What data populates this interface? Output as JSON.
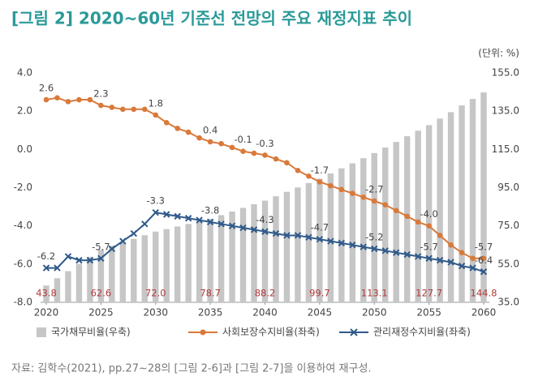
{
  "chart_data": {
    "type": "combo",
    "title": "[그림 2] 2020~60년 기준선 전망의 주요 재정지표 추이",
    "unit": "(단위: %)",
    "note": "자료: 김학수(2021), pp.27~28의 [그림 2-6]과 [그림 2-7]을 이용하여 재구성.",
    "x": [
      2020,
      2021,
      2022,
      2023,
      2024,
      2025,
      2026,
      2027,
      2028,
      2029,
      2030,
      2031,
      2032,
      2033,
      2034,
      2035,
      2036,
      2037,
      2038,
      2039,
      2040,
      2041,
      2042,
      2043,
      2044,
      2045,
      2046,
      2047,
      2048,
      2049,
      2050,
      2051,
      2052,
      2053,
      2054,
      2055,
      2056,
      2057,
      2058,
      2059,
      2060
    ],
    "xlim": [
      2020,
      2060
    ],
    "xticks": [
      2020,
      2025,
      2030,
      2035,
      2040,
      2045,
      2050,
      2055,
      2060
    ],
    "ylim": [
      -8,
      4
    ],
    "yticks": [
      {
        "value": 4,
        "label": "4.0"
      },
      {
        "value": 2,
        "label": "2.0"
      },
      {
        "value": 0,
        "label": "0.0"
      },
      {
        "value": -2,
        "label": "-2.0"
      },
      {
        "value": -4,
        "label": "-4.0"
      },
      {
        "value": -6,
        "label": "-6.0"
      },
      {
        "value": -8,
        "label": "-8.0"
      }
    ],
    "y2lim": [
      35,
      155
    ],
    "y2ticks": [
      {
        "value": 155,
        "label": "155.0"
      },
      {
        "value": 135,
        "label": "135.0"
      },
      {
        "value": 115,
        "label": "115.0"
      },
      {
        "value": 95,
        "label": "95.0"
      },
      {
        "value": 75,
        "label": "75.0"
      },
      {
        "value": 55,
        "label": "55.0"
      },
      {
        "value": 35,
        "label": "35.0"
      }
    ],
    "grid": false,
    "legend": "bottom",
    "series": [
      {
        "name": "국가채무비율(우축)",
        "type": "bar",
        "axis": "y2",
        "color": "#c6c6c6",
        "label_color": "#b23a3a",
        "values": [
          43.8,
          47.6,
          51.3,
          55.1,
          58.8,
          62.6,
          64.5,
          66.4,
          68.2,
          70.1,
          72.0,
          73.3,
          74.7,
          76.0,
          77.4,
          78.7,
          80.6,
          82.5,
          84.4,
          86.3,
          88.2,
          90.5,
          92.8,
          95.1,
          97.4,
          99.7,
          102.4,
          105.1,
          107.7,
          110.4,
          113.1,
          116.0,
          118.9,
          121.9,
          124.8,
          127.7,
          131.1,
          134.5,
          138.0,
          141.4,
          144.8
        ],
        "value_labels": [
          "43.8",
          null,
          null,
          null,
          null,
          "62.6",
          null,
          null,
          null,
          null,
          "72.0",
          null,
          null,
          null,
          null,
          "78.7",
          null,
          null,
          null,
          null,
          "88.2",
          null,
          null,
          null,
          null,
          "99.7",
          null,
          null,
          null,
          null,
          "113.1",
          null,
          null,
          null,
          null,
          "127.7",
          null,
          null,
          null,
          null,
          "144.8"
        ]
      },
      {
        "name": "사회보장수지비율(좌축)",
        "type": "line",
        "marker": "circle",
        "color": "#d9793a",
        "values": [
          2.6,
          2.7,
          2.5,
          2.6,
          2.6,
          2.3,
          2.2,
          2.1,
          2.1,
          2.1,
          1.8,
          1.4,
          1.1,
          0.9,
          0.6,
          0.4,
          0.3,
          0.1,
          -0.1,
          -0.2,
          -0.3,
          -0.5,
          -0.7,
          -1.1,
          -1.4,
          -1.7,
          -1.9,
          -2.1,
          -2.3,
          -2.5,
          -2.7,
          -2.9,
          -3.2,
          -3.5,
          -3.8,
          -4.0,
          -4.5,
          -5.0,
          -5.4,
          -5.7,
          -5.7
        ],
        "value_labels": [
          "2.6",
          null,
          null,
          null,
          null,
          "2.3",
          null,
          null,
          null,
          null,
          "1.8",
          null,
          null,
          null,
          null,
          "0.4",
          null,
          null,
          "-0.1",
          null,
          "-0.3",
          null,
          null,
          null,
          null,
          "-1.7",
          null,
          null,
          null,
          null,
          "-2.7",
          null,
          null,
          null,
          null,
          "-4.0",
          null,
          null,
          null,
          null,
          "-5.7"
        ]
      },
      {
        "name": "관리재정수지비율(좌축)",
        "type": "line",
        "marker": "x",
        "color": "#2f5a8a",
        "values": [
          -6.2,
          -6.2,
          -5.6,
          -5.8,
          -5.8,
          -5.7,
          -5.2,
          -4.8,
          -4.4,
          -3.9,
          -3.3,
          -3.4,
          -3.5,
          -3.6,
          -3.7,
          -3.8,
          -3.9,
          -4.0,
          -4.1,
          -4.2,
          -4.3,
          -4.4,
          -4.5,
          -4.5,
          -4.6,
          -4.7,
          -4.8,
          -4.9,
          -5.0,
          -5.1,
          -5.2,
          -5.3,
          -5.4,
          -5.5,
          -5.6,
          -5.7,
          -5.8,
          -5.9,
          -6.1,
          -6.2,
          -6.4
        ],
        "value_labels": [
          "-6.2",
          null,
          null,
          null,
          null,
          "-5.7",
          null,
          null,
          null,
          null,
          "-3.3",
          null,
          null,
          null,
          null,
          "-3.8",
          null,
          null,
          null,
          null,
          "-4.3",
          null,
          null,
          null,
          null,
          "-4.7",
          null,
          null,
          null,
          null,
          "-5.2",
          null,
          null,
          null,
          null,
          "-5.7",
          null,
          null,
          null,
          null,
          "-6.4"
        ]
      }
    ]
  }
}
